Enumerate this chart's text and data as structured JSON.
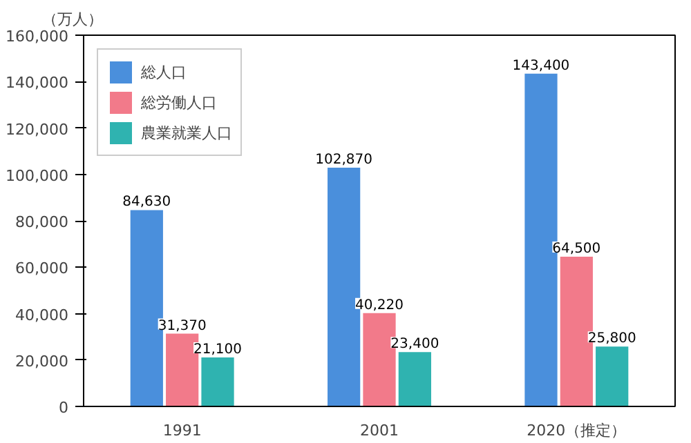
{
  "chart_data": {
    "type": "bar",
    "ylabel": "（万人）",
    "categories": [
      "1991",
      "2001",
      "2020（推定）"
    ],
    "series": [
      {
        "name": "総人口",
        "color": "#4a8fdc",
        "values": [
          84630,
          102870,
          143400
        ],
        "value_labels": [
          "84,630",
          "102,870",
          "143,400"
        ]
      },
      {
        "name": "総労働人口",
        "color": "#f27a8a",
        "values": [
          31370,
          40220,
          64500
        ],
        "value_labels": [
          "31,370",
          "40,220",
          "64,500"
        ]
      },
      {
        "name": "農業就業人口",
        "color": "#2fb3b0",
        "values": [
          21100,
          23400,
          25800
        ],
        "value_labels": [
          "21,100",
          "23,400",
          "25,800"
        ]
      }
    ],
    "ylim": [
      0,
      160000
    ],
    "yticks": [
      0,
      {
        "value": 20000,
        "label": "20,000"
      },
      {
        "value": 40000,
        "label": "40,000"
      },
      {
        "value": 60000,
        "label": "60,000"
      },
      {
        "value": 80000,
        "label": "80,000"
      },
      {
        "value": 100000,
        "label": "100,000"
      },
      {
        "value": 120000,
        "label": "120,000"
      },
      {
        "value": 140000,
        "label": "140,000"
      },
      {
        "value": 160000,
        "label": "160,000"
      }
    ],
    "legend": "top left",
    "grid": false
  }
}
